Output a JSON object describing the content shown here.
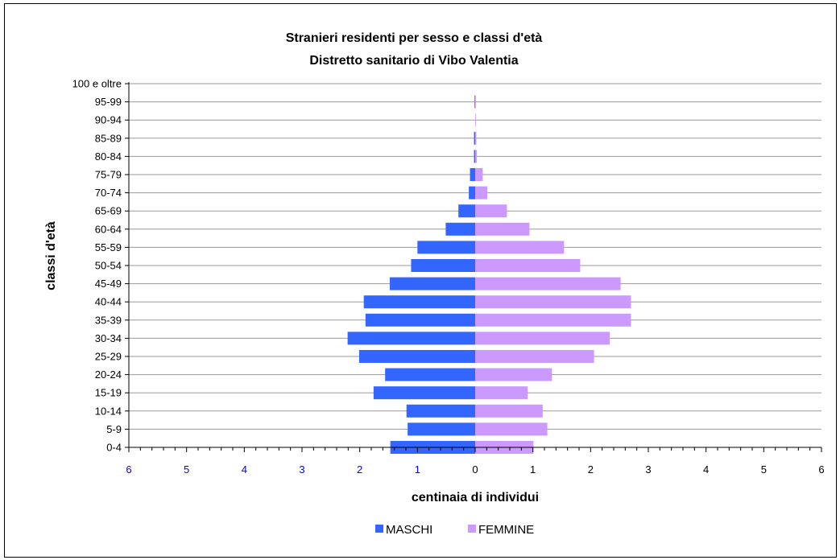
{
  "chart_data": {
    "type": "bar",
    "orientation": "horizontal",
    "title": "Stranieri residenti per sesso e classi d'età",
    "subtitle": "Distretto sanitario di Vibo Valentia",
    "xlabel": "centinaia di individui",
    "ylabel": "classi d'età",
    "xlim": [
      -6,
      6
    ],
    "x_tick_labels_left": [
      "6",
      "5",
      "4",
      "3",
      "2",
      "1"
    ],
    "x_tick_labels_right": [
      "0",
      "1",
      "2",
      "3",
      "4",
      "5",
      "6"
    ],
    "categories": [
      "0-4",
      "5-9",
      "10-14",
      "15-19",
      "20-24",
      "25-29",
      "30-34",
      "35-39",
      "40-44",
      "45-49",
      "50-54",
      "55-59",
      "60-64",
      "65-69",
      "70-74",
      "75-79",
      "80-84",
      "85-89",
      "90-94",
      "95-99",
      "100 e oltre"
    ],
    "series": [
      {
        "name": "MASCHI",
        "color": "#3366ff",
        "values": [
          -1.47,
          -1.17,
          -1.19,
          -1.76,
          -1.56,
          -2.01,
          -2.21,
          -1.9,
          -1.93,
          -1.48,
          -1.11,
          -1.0,
          -0.51,
          -0.29,
          -0.11,
          -0.09,
          -0.02,
          -0.02,
          0,
          -0.01,
          0
        ]
      },
      {
        "name": "FEMMINE",
        "color": "#cc99ff",
        "values": [
          1.01,
          1.25,
          1.17,
          0.91,
          1.33,
          2.06,
          2.33,
          2.7,
          2.7,
          2.52,
          1.82,
          1.54,
          0.94,
          0.55,
          0.21,
          0.13,
          0.03,
          0.02,
          0.01,
          0.01,
          0
        ]
      }
    ],
    "grid": true,
    "legend_position": "bottom"
  }
}
